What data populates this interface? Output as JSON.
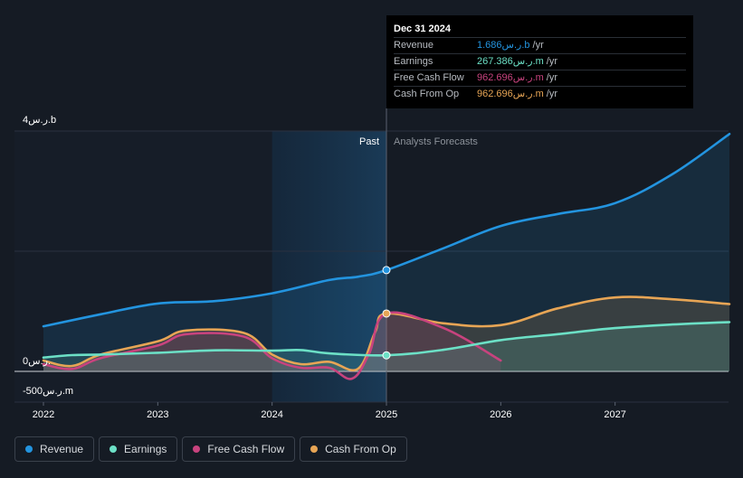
{
  "colors": {
    "background": "#151b24",
    "past_shade": "#1a2130",
    "revenue": "#2394df",
    "earnings": "#6ce0c6",
    "free_cash_flow": "#c8437e",
    "cash_from_op": "#e7a555",
    "grid": "#2a3140",
    "axis_text": "#ffffff",
    "divider": "#5a6270"
  },
  "tooltip": {
    "title": "Dec 31 2024",
    "rows": [
      {
        "label": "Revenue",
        "value": "1.686ر.س.b",
        "unit": "/yr",
        "color": "#2394df"
      },
      {
        "label": "Earnings",
        "value": "267.386ر.س.m",
        "unit": "/yr",
        "color": "#6ce0c6"
      },
      {
        "label": "Free Cash Flow",
        "value": "962.696ر.س.m",
        "unit": "/yr",
        "color": "#c8437e"
      },
      {
        "label": "Cash From Op",
        "value": "962.696ر.س.m",
        "unit": "/yr",
        "color": "#e7a555"
      }
    ]
  },
  "labels": {
    "past": "Past",
    "forecast": "Analysts Forecasts"
  },
  "legend": [
    {
      "label": "Revenue",
      "color": "#2394df"
    },
    {
      "label": "Earnings",
      "color": "#6ce0c6"
    },
    {
      "label": "Free Cash Flow",
      "color": "#c8437e"
    },
    {
      "label": "Cash From Op",
      "color": "#e7a555"
    }
  ],
  "chart_data": {
    "type": "line",
    "title": "",
    "xlabel": "",
    "ylabel": "",
    "y_unit": "SAR millions",
    "xlim": [
      2022.0,
      2028.0
    ],
    "ylim": [
      -500,
      4000
    ],
    "y_ticks": [
      {
        "value": 4000,
        "label": "4ر.س.b"
      },
      {
        "value": 0,
        "label": "0ر.س."
      },
      {
        "value": -500,
        "label": "-500ر.س.m"
      }
    ],
    "x_ticks": [
      {
        "value": 2022,
        "label": "2022"
      },
      {
        "value": 2023,
        "label": "2023"
      },
      {
        "value": 2024,
        "label": "2024"
      },
      {
        "value": 2025,
        "label": "2025"
      },
      {
        "value": 2026,
        "label": "2026"
      },
      {
        "value": 2027,
        "label": "2027"
      }
    ],
    "past_end": 2025.0,
    "past_shade_start": 2024.0,
    "highlight_x": 2025.0,
    "series": [
      {
        "name": "Revenue",
        "color": "#2394df",
        "fill": true,
        "points": [
          [
            2022.0,
            750
          ],
          [
            2022.5,
            950
          ],
          [
            2023.0,
            1130
          ],
          [
            2023.5,
            1170
          ],
          [
            2024.0,
            1300
          ],
          [
            2024.5,
            1520
          ],
          [
            2024.75,
            1575
          ],
          [
            2025.0,
            1686
          ],
          [
            2025.5,
            2050
          ],
          [
            2026.0,
            2420
          ],
          [
            2026.5,
            2620
          ],
          [
            2027.0,
            2800
          ],
          [
            2027.5,
            3280
          ],
          [
            2028.0,
            3950
          ]
        ]
      },
      {
        "name": "Earnings",
        "color": "#6ce0c6",
        "fill": true,
        "points": [
          [
            2022.0,
            230
          ],
          [
            2022.25,
            270
          ],
          [
            2022.5,
            280
          ],
          [
            2023.0,
            310
          ],
          [
            2023.5,
            350
          ],
          [
            2024.0,
            345
          ],
          [
            2024.25,
            355
          ],
          [
            2024.5,
            300
          ],
          [
            2025.0,
            267.386
          ],
          [
            2025.5,
            360
          ],
          [
            2026.0,
            520
          ],
          [
            2026.5,
            620
          ],
          [
            2027.0,
            720
          ],
          [
            2027.5,
            780
          ],
          [
            2028.0,
            820
          ]
        ]
      },
      {
        "name": "Free Cash Flow",
        "color": "#c8437e",
        "fill": true,
        "points": [
          [
            2022.0,
            120
          ],
          [
            2022.25,
            40
          ],
          [
            2022.5,
            220
          ],
          [
            2023.0,
            430
          ],
          [
            2023.25,
            620
          ],
          [
            2023.75,
            580
          ],
          [
            2024.0,
            220
          ],
          [
            2024.25,
            60
          ],
          [
            2024.5,
            60
          ],
          [
            2024.7,
            -120
          ],
          [
            2024.85,
            300
          ],
          [
            2025.0,
            962.696
          ],
          [
            2025.5,
            720
          ],
          [
            2026.0,
            180
          ]
        ]
      },
      {
        "name": "Cash From Op",
        "color": "#e7a555",
        "fill": true,
        "points": [
          [
            2022.0,
            180
          ],
          [
            2022.25,
            90
          ],
          [
            2022.5,
            280
          ],
          [
            2023.0,
            500
          ],
          [
            2023.25,
            680
          ],
          [
            2023.75,
            640
          ],
          [
            2024.0,
            280
          ],
          [
            2024.25,
            120
          ],
          [
            2024.5,
            160
          ],
          [
            2024.75,
            40
          ],
          [
            2024.9,
            650
          ],
          [
            2025.0,
            962.696
          ],
          [
            2025.5,
            800
          ],
          [
            2026.0,
            770
          ],
          [
            2026.5,
            1050
          ],
          [
            2027.0,
            1230
          ],
          [
            2027.5,
            1200
          ],
          [
            2028.0,
            1120
          ]
        ]
      }
    ]
  }
}
